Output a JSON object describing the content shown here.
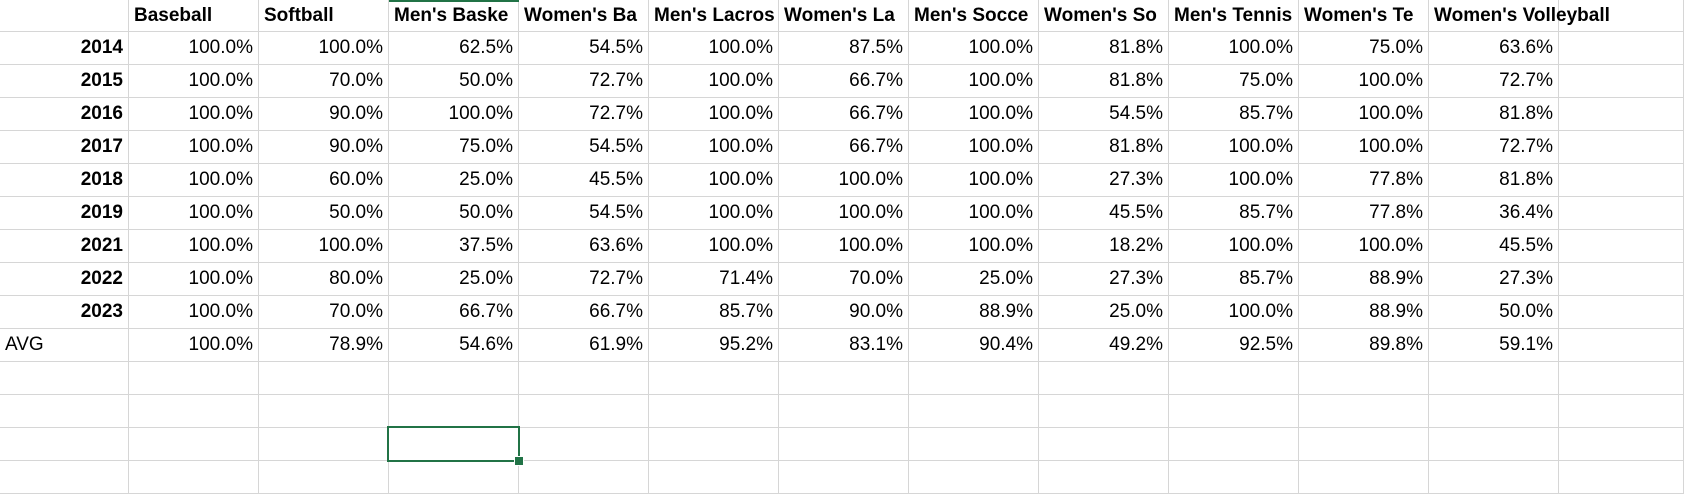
{
  "table": {
    "header": [
      "Baseball",
      "Softball",
      "Men's Baske",
      "Women's Ba",
      "Men's Lacros",
      "Women's La",
      "Men's Socce",
      "Women's So",
      "Men's Tennis",
      "Women's Te",
      "Women's Volleyball"
    ],
    "rows": [
      [
        "2014",
        "100.0%",
        "100.0%",
        "62.5%",
        "54.5%",
        "100.0%",
        "87.5%",
        "100.0%",
        "81.8%",
        "100.0%",
        "75.0%",
        "63.6%"
      ],
      [
        "2015",
        "100.0%",
        "70.0%",
        "50.0%",
        "72.7%",
        "100.0%",
        "66.7%",
        "100.0%",
        "81.8%",
        "75.0%",
        "100.0%",
        "72.7%"
      ],
      [
        "2016",
        "100.0%",
        "90.0%",
        "100.0%",
        "72.7%",
        "100.0%",
        "66.7%",
        "100.0%",
        "54.5%",
        "85.7%",
        "100.0%",
        "81.8%"
      ],
      [
        "2017",
        "100.0%",
        "90.0%",
        "75.0%",
        "54.5%",
        "100.0%",
        "66.7%",
        "100.0%",
        "81.8%",
        "100.0%",
        "100.0%",
        "72.7%"
      ],
      [
        "2018",
        "100.0%",
        "60.0%",
        "25.0%",
        "45.5%",
        "100.0%",
        "100.0%",
        "100.0%",
        "27.3%",
        "100.0%",
        "77.8%",
        "81.8%"
      ],
      [
        "2019",
        "100.0%",
        "50.0%",
        "50.0%",
        "54.5%",
        "100.0%",
        "100.0%",
        "100.0%",
        "45.5%",
        "85.7%",
        "77.8%",
        "36.4%"
      ],
      [
        "2021",
        "100.0%",
        "100.0%",
        "37.5%",
        "63.6%",
        "100.0%",
        "100.0%",
        "100.0%",
        "18.2%",
        "100.0%",
        "100.0%",
        "45.5%"
      ],
      [
        "2022",
        "100.0%",
        "80.0%",
        "25.0%",
        "72.7%",
        "71.4%",
        "70.0%",
        "25.0%",
        "27.3%",
        "85.7%",
        "88.9%",
        "27.3%"
      ],
      [
        "2023",
        "100.0%",
        "70.0%",
        "66.7%",
        "66.7%",
        "85.7%",
        "90.0%",
        "88.9%",
        "25.0%",
        "100.0%",
        "88.9%",
        "50.0%"
      ],
      [
        "AVG",
        "100.0%",
        "78.9%",
        "54.6%",
        "61.9%",
        "95.2%",
        "83.1%",
        "90.4%",
        "49.2%",
        "92.5%",
        "89.8%",
        "59.1%"
      ]
    ]
  }
}
